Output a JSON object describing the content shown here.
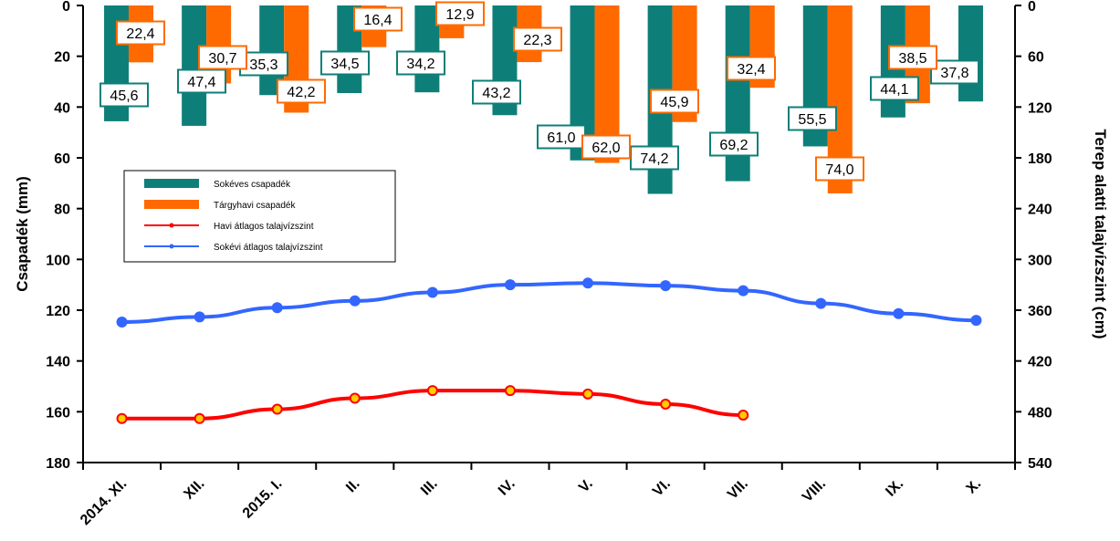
{
  "chart_data": {
    "type": "bar",
    "categories": [
      "2014. XI.",
      "XII.",
      "2015. I.",
      "II.",
      "III.",
      "IV.",
      "V.",
      "VI.",
      "VII.",
      "VIII.",
      "IX.",
      "X."
    ],
    "series": [
      {
        "name": "Sokéves csapadék",
        "kind": "bar",
        "axis": "left",
        "color": "#0E7F78",
        "values": [
          45.6,
          47.4,
          35.3,
          34.5,
          34.2,
          43.2,
          61.0,
          74.2,
          69.2,
          55.5,
          44.1,
          37.8
        ],
        "labels": [
          "45,6",
          "47,4",
          "35,3",
          "34,5",
          "34,2",
          "43,2",
          "61,0",
          "74,2",
          "69,2",
          "55,5",
          "44,1",
          "37,8"
        ]
      },
      {
        "name": "Tárgyhavi csapadék",
        "kind": "bar",
        "axis": "left",
        "color": "#FF6A00",
        "values": [
          22.4,
          30.7,
          42.2,
          16.4,
          12.9,
          22.3,
          62.0,
          45.9,
          32.4,
          74.0,
          38.5,
          null
        ],
        "labels": [
          "22,4",
          "30,7",
          "42,2",
          "16,4",
          "12,9",
          "22,3",
          "62,0",
          "45,9",
          "32,4",
          "74,0",
          "38,5",
          ""
        ]
      },
      {
        "name": "Havi átlagos talajvízszint",
        "kind": "line",
        "axis": "right",
        "color": "#FF0000",
        "values": [
          488,
          488,
          477,
          464,
          455,
          455,
          459,
          471,
          484,
          null,
          null,
          null
        ]
      },
      {
        "name": "Sokévi átlagos talajvízszint",
        "kind": "line",
        "axis": "right",
        "color": "#3366FF",
        "values": [
          374,
          368,
          357,
          349,
          339,
          330,
          328,
          331,
          337,
          352,
          364,
          372
        ]
      }
    ],
    "y_left": {
      "label": "Csapadék (mm)",
      "min": 0,
      "max": 180,
      "ticks": [
        0,
        20,
        40,
        60,
        80,
        100,
        120,
        140,
        160,
        180
      ],
      "reversed": true
    },
    "y_right": {
      "label": "Terep alatti talajvízszint (cm)",
      "min": 0,
      "max": 540,
      "ticks": [
        0,
        60,
        120,
        180,
        240,
        300,
        360,
        420,
        480,
        540
      ],
      "reversed": true
    },
    "legend": {
      "position": "left-middle"
    },
    "grid": false
  }
}
